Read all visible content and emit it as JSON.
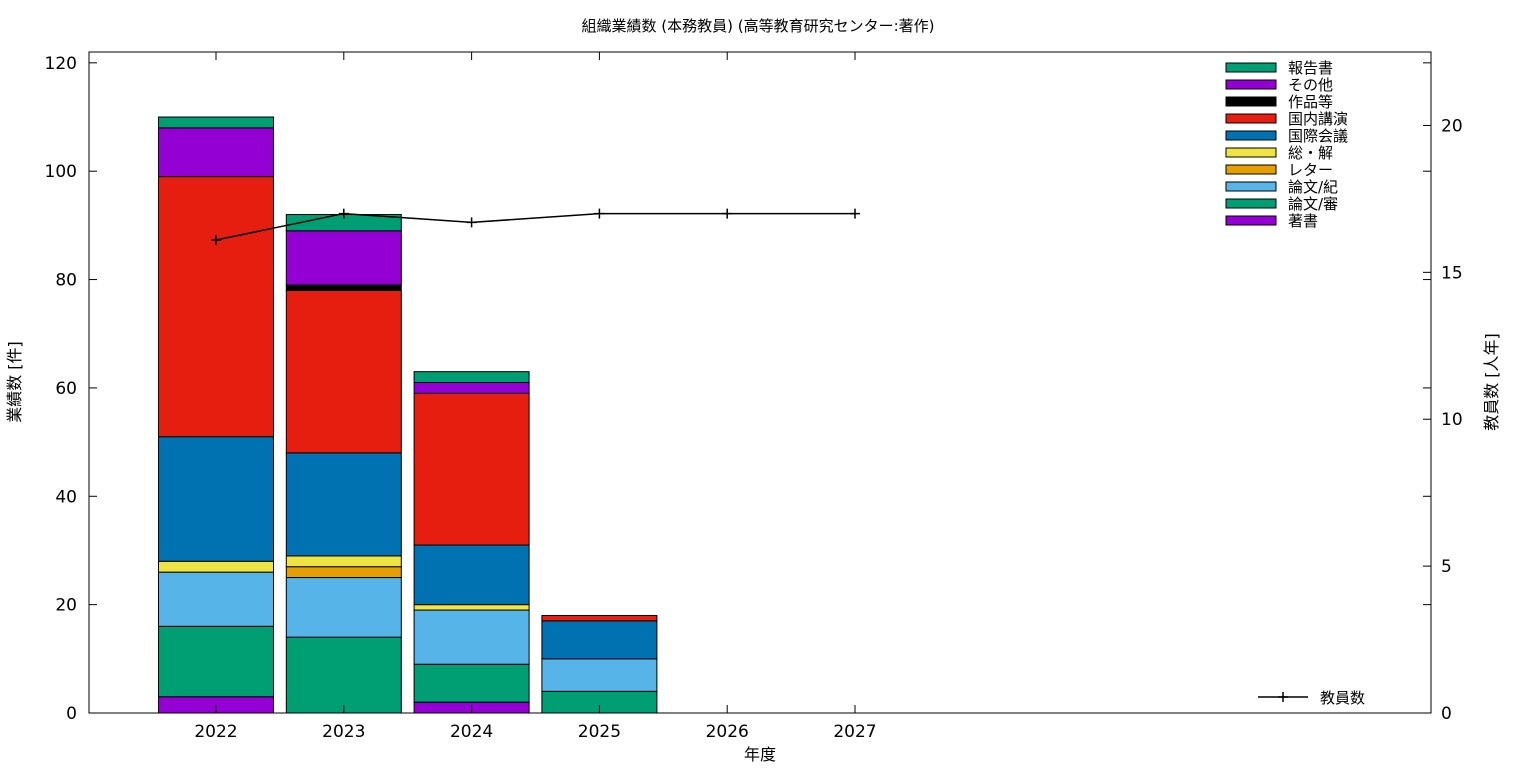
{
  "chart_data": {
    "type": "bar",
    "title": "組織業績数 (本務教員) (高等教育研究センター:著作)",
    "xlabel": "年度",
    "ylabel": "業績数 [件]",
    "y2label": "教員数 [人年]",
    "categories": [
      "2022",
      "2023",
      "2024",
      "2025",
      "2026",
      "2027"
    ],
    "ylim": [
      0,
      122
    ],
    "y2lim": [
      0,
      22.5
    ],
    "yticks": [
      0,
      20,
      40,
      60,
      80,
      100,
      120
    ],
    "y2ticks": [
      0,
      5,
      10,
      15,
      20
    ],
    "grid": false,
    "legend_position": "top-right",
    "series": [
      {
        "name": "著書",
        "color": "#9400d3",
        "values": [
          3,
          0,
          2,
          0,
          null,
          null
        ]
      },
      {
        "name": "論文/審",
        "color": "#009e73",
        "values": [
          13,
          14,
          7,
          4,
          null,
          null
        ]
      },
      {
        "name": "論文/紀",
        "color": "#56b4e9",
        "values": [
          10,
          11,
          10,
          6,
          null,
          null
        ]
      },
      {
        "name": "レター",
        "color": "#e69f00",
        "values": [
          0,
          2,
          0,
          0,
          null,
          null
        ]
      },
      {
        "name": "総・解",
        "color": "#f0e442",
        "values": [
          2,
          2,
          1,
          0,
          null,
          null
        ]
      },
      {
        "name": "国際会議",
        "color": "#0072b2",
        "values": [
          23,
          19,
          11,
          7,
          null,
          null
        ]
      },
      {
        "name": "国内講演",
        "color": "#e51e10",
        "values": [
          48,
          30,
          28,
          1,
          null,
          null
        ]
      },
      {
        "name": "作品等",
        "color": "#000000",
        "values": [
          0,
          1,
          0,
          0,
          null,
          null
        ]
      },
      {
        "name": "その他",
        "color": "#9400d3",
        "values": [
          9,
          10,
          2,
          0,
          null,
          null
        ]
      },
      {
        "name": "報告書",
        "color": "#009e73",
        "values": [
          2,
          3,
          2,
          0,
          null,
          null
        ]
      }
    ],
    "line_series": {
      "name": "教員数",
      "color": "#000000",
      "axis": "y2",
      "values": [
        16.1,
        17.0,
        16.7,
        17.0,
        17.0,
        17.0
      ]
    }
  }
}
